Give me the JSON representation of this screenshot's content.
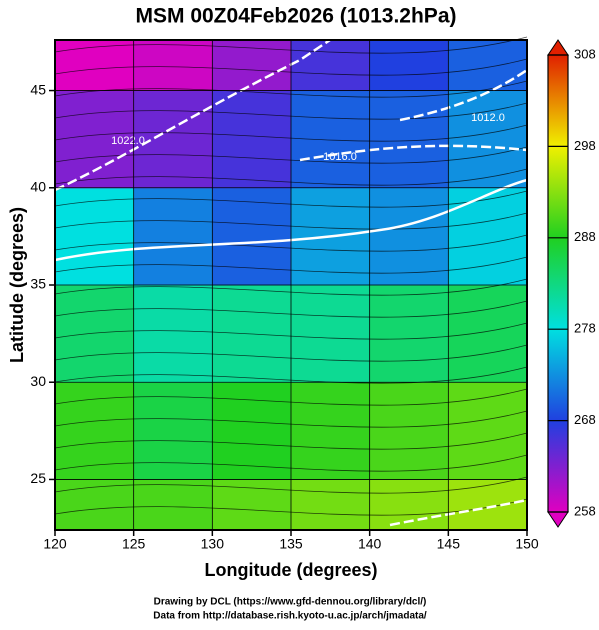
{
  "chart_data": {
    "type": "map",
    "title": "MSM 00Z04Feb2026 (1013.2hPa)",
    "x_label": "Longitude (degrees)",
    "y_label": "Latitude  (degrees)",
    "xlim": [
      120,
      150
    ],
    "ylim": [
      22.4,
      47.6
    ],
    "xticks": [
      120,
      125,
      130,
      135,
      140,
      145,
      150
    ],
    "yticks": [
      25,
      30,
      35,
      40,
      45
    ],
    "grid": true,
    "field": {
      "lon_edges": [
        120,
        125,
        130,
        135,
        140,
        145,
        150
      ],
      "lat_edges": [
        22.4,
        25,
        30,
        35,
        40,
        45,
        47.6
      ],
      "values": [
        [
          290,
          290,
          291,
          292,
          293,
          294
        ],
        [
          289,
          286,
          288,
          289,
          290,
          291
        ],
        [
          284,
          281,
          282,
          282,
          284,
          285
        ],
        [
          278,
          272,
          270,
          274,
          273,
          277
        ],
        [
          263,
          264,
          266,
          270,
          270,
          273
        ],
        [
          258,
          259,
          262,
          266,
          268,
          270
        ]
      ]
    },
    "colorbar": {
      "clim": [
        258,
        308
      ],
      "ticks": [
        258,
        268,
        278,
        288,
        298,
        308
      ],
      "colormap": [
        "#e000c0",
        "#2040e0",
        "#00e0e0",
        "#20d020",
        "#f0f000",
        "#e02000"
      ]
    },
    "contour_labels": [
      "1022.0",
      "1016.0",
      "1012.0"
    ],
    "credits": [
      "Drawing by DCL (https://www.gfd-dennou.org/library/dcl/)",
      "Data from http://database.rish.kyoto-u.ac.jp/arch/jmadata/"
    ]
  }
}
